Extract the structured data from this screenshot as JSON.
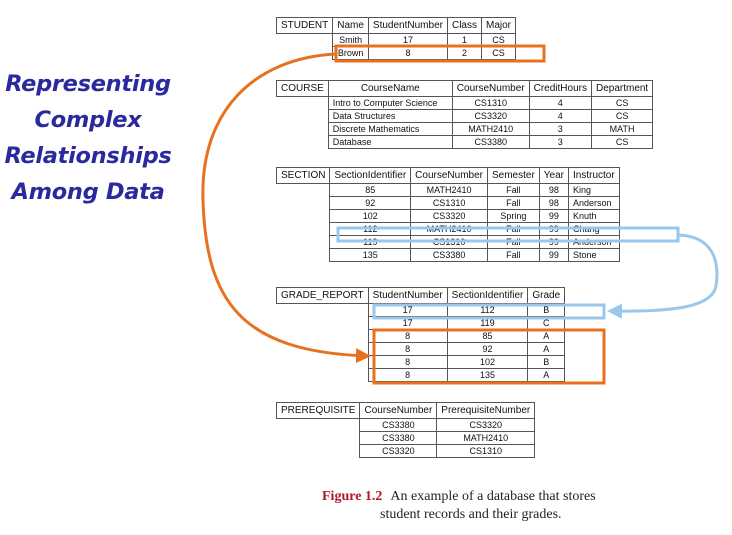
{
  "side_title": [
    "Representing",
    "Complex",
    "Relationships",
    "Among Data"
  ],
  "student": {
    "name": "STUDENT",
    "headers": [
      "Name",
      "StudentNumber",
      "Class",
      "Major"
    ],
    "rows": [
      [
        "Smith",
        "17",
        "1",
        "CS"
      ],
      [
        "Brown",
        "8",
        "2",
        "CS"
      ]
    ]
  },
  "course": {
    "name": "COURSE",
    "headers": [
      "CourseName",
      "CourseNumber",
      "CreditHours",
      "Department"
    ],
    "rows": [
      [
        "Intro to Computer Science",
        "CS1310",
        "4",
        "CS"
      ],
      [
        "Data Structures",
        "CS3320",
        "4",
        "CS"
      ],
      [
        "Discrete Mathematics",
        "MATH2410",
        "3",
        "MATH"
      ],
      [
        "Database",
        "CS3380",
        "3",
        "CS"
      ]
    ]
  },
  "section": {
    "name": "SECTION",
    "headers": [
      "SectionIdentifier",
      "CourseNumber",
      "Semester",
      "Year",
      "Instructor"
    ],
    "rows": [
      [
        "85",
        "MATH2410",
        "Fall",
        "98",
        "King"
      ],
      [
        "92",
        "CS1310",
        "Fall",
        "98",
        "Anderson"
      ],
      [
        "102",
        "CS3320",
        "Spring",
        "99",
        "Knuth"
      ],
      [
        "112",
        "MATH2410",
        "Fall",
        "99",
        "Chang"
      ],
      [
        "119",
        "CS1310",
        "Fall",
        "99",
        "Anderson"
      ],
      [
        "135",
        "CS3380",
        "Fall",
        "99",
        "Stone"
      ]
    ]
  },
  "grade_report": {
    "name": "GRADE_REPORT",
    "headers": [
      "StudentNumber",
      "SectionIdentifier",
      "Grade"
    ],
    "rows": [
      [
        "17",
        "112",
        "B"
      ],
      [
        "17",
        "119",
        "C"
      ],
      [
        "8",
        "85",
        "A"
      ],
      [
        "8",
        "92",
        "A"
      ],
      [
        "8",
        "102",
        "B"
      ],
      [
        "8",
        "135",
        "A"
      ]
    ]
  },
  "prerequisite": {
    "name": "PREREQUISITE",
    "headers": [
      "CourseNumber",
      "PrerequisiteNumber"
    ],
    "rows": [
      [
        "CS3380",
        "CS3320"
      ],
      [
        "CS3380",
        "MATH2410"
      ],
      [
        "CS3320",
        "CS1310"
      ]
    ]
  },
  "caption": {
    "label": "Figure 1.2",
    "line1": "An example of a database that stores",
    "line2": "student records and their grades."
  },
  "colors": {
    "orange": "#e8711f",
    "blue": "#9ac8ec",
    "title": "#2a2a9e",
    "figure_label": "#b0182a"
  }
}
